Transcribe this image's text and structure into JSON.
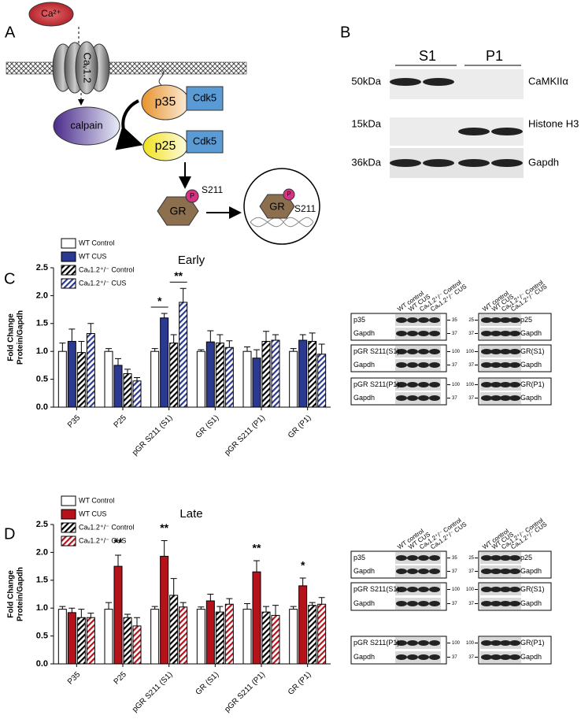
{
  "figure": {
    "panel_a": {
      "letter": "A",
      "ca": "Ca²⁺",
      "channel": "Caᵥ1.2",
      "calpain": "calpain",
      "p35": "p35",
      "cdk5_top": "Cdk5",
      "p25": "p25",
      "cdk5_bottom": "Cdk5",
      "gr_cyto": "GR",
      "p_cyto": "P",
      "s211_cyto": "S211",
      "gr_nuc": "GR",
      "p_nuc": "P",
      "s211_nuc": "S211"
    },
    "panel_b": {
      "letter": "B",
      "groups": [
        "S1",
        "P1"
      ],
      "markers": [
        "50kDa",
        "15kDa",
        "36kDa"
      ],
      "labels": [
        "CaMKIIα",
        "Histone H3",
        "Gapdh"
      ]
    },
    "blots": [
      {
        "columns": [
          "WT control",
          "WT CUS",
          "Caᵥ1.2⁺/⁻ Control",
          "Caᵥ1.2⁺/⁻ CUS"
        ],
        "left": {
          "labels": [
            "p35",
            "Gapdh",
            "pGR S211(S1)",
            "Gapdh",
            "pGR S211(P1)",
            "Gapdh"
          ],
          "markers": [
            35,
            37,
            100,
            37,
            100,
            37
          ]
        },
        "right": {
          "labels": [
            "p25",
            "Gapdh",
            "GR(S1)",
            "Gapdh",
            "GR(P1)",
            "Gapdh"
          ],
          "markers": [
            25,
            37,
            100,
            37,
            100,
            37
          ]
        }
      },
      {
        "columns": [
          "WT control",
          "WT CUS",
          "Caᵥ1.2⁺/⁻ Control",
          "Caᵥ1.2⁺/⁻ CUS"
        ],
        "left": {
          "labels": [
            "p35",
            "Gapdh",
            "pGR S211(S1)",
            "Gapdh",
            "pGR S211(P1)",
            "Gapdh"
          ],
          "markers": [
            35,
            37,
            100,
            37,
            100,
            37
          ]
        },
        "right": {
          "labels": [
            "p25",
            "Gapdh",
            "GR(S1)",
            "Gapdh",
            "GR(P1)",
            "Gapdh"
          ],
          "markers": [
            25,
            37,
            100,
            37,
            100,
            37
          ]
        }
      }
    ]
  },
  "chart_data": [
    {
      "type": "bar",
      "panel": "C",
      "title": "Early",
      "ylabel": [
        "Fold Change",
        "Protein/Gapdh"
      ],
      "categories": [
        "P35",
        "P25",
        "pGR S211 (S1)",
        "GR (S1)",
        "pGR S211 (P1)",
        "GR (P1)"
      ],
      "series": [
        {
          "name": "WT Control",
          "color": "#ffffff",
          "hatch": false,
          "values": [
            1.0,
            1.0,
            1.0,
            1.0,
            1.0,
            1.0
          ],
          "errors": [
            0.15,
            0.05,
            0.05,
            0.03,
            0.08,
            0.05
          ]
        },
        {
          "name": "WT CUS",
          "color": "#2b3990",
          "hatch": false,
          "values": [
            1.18,
            0.75,
            1.6,
            1.17,
            0.88,
            1.2
          ],
          "errors": [
            0.22,
            0.12,
            0.08,
            0.2,
            0.15,
            0.1
          ]
        },
        {
          "name": "Caᵥ1.2⁺/⁻ Control",
          "color": "#000000",
          "hatch": true,
          "values": [
            0.98,
            0.6,
            1.15,
            1.15,
            1.18,
            1.18
          ],
          "errors": [
            0.2,
            0.08,
            0.15,
            0.15,
            0.18,
            0.15
          ]
        },
        {
          "name": "Caᵥ1.2⁺/⁻ CUS",
          "color": "#2b3990",
          "hatch": true,
          "values": [
            1.32,
            0.47,
            1.88,
            1.07,
            1.2,
            0.95
          ],
          "errors": [
            0.18,
            0.06,
            0.25,
            0.12,
            0.1,
            0.18
          ]
        }
      ],
      "ylim": [
        0,
        2.5
      ],
      "yticks": [
        {
          "value": 0,
          "label": "0.0"
        },
        0.5,
        {
          "value": 1,
          "label": "1.0"
        },
        1.5,
        {
          "value": 2,
          "label": "2.0"
        },
        2.5
      ],
      "annotations": [
        {
          "text": "*",
          "category": "pGR S211 (S1)",
          "series": [
            "WT Control",
            "WT CUS"
          ]
        },
        {
          "text": "**",
          "category": "pGR S211 (S1)",
          "series": [
            "Caᵥ1.2⁺/⁻ Control",
            "Caᵥ1.2⁺/⁻ CUS"
          ]
        }
      ]
    },
    {
      "type": "bar",
      "panel": "D",
      "title": "Late",
      "ylabel": [
        "Fold Change",
        "Protein/Gapdh"
      ],
      "categories": [
        "P35",
        "P25",
        "pGR S211 (S1)",
        "GR (S1)",
        "pGR S211 (P1)",
        "GR (P1)"
      ],
      "series": [
        {
          "name": "WT Control",
          "color": "#ffffff",
          "hatch": false,
          "values": [
            0.98,
            0.98,
            0.98,
            0.98,
            0.98,
            0.98
          ],
          "errors": [
            0.05,
            0.12,
            0.05,
            0.04,
            0.1,
            0.05
          ]
        },
        {
          "name": "WT CUS",
          "color": "#b5121b",
          "hatch": false,
          "values": [
            0.92,
            1.75,
            1.93,
            1.13,
            1.65,
            1.4
          ],
          "errors": [
            0.08,
            0.2,
            0.28,
            0.12,
            0.2,
            0.14
          ]
        },
        {
          "name": "Caᵥ1.2⁺/⁻ Control",
          "color": "#000000",
          "hatch": true,
          "values": [
            0.83,
            0.83,
            1.23,
            0.93,
            0.93,
            1.05
          ],
          "errors": [
            0.15,
            0.06,
            0.3,
            0.1,
            0.1,
            0.05
          ]
        },
        {
          "name": "Caᵥ1.2⁺/⁻ CUS",
          "color": "#b5121b",
          "hatch": true,
          "values": [
            0.83,
            0.68,
            1.02,
            1.07,
            0.87,
            1.07
          ],
          "errors": [
            0.08,
            0.15,
            0.08,
            0.1,
            0.18,
            0.12
          ]
        }
      ],
      "ylim": [
        0,
        2.5
      ],
      "yticks": [
        {
          "value": 0,
          "label": "0.0"
        },
        0.5,
        {
          "value": 1,
          "label": "1.0"
        },
        1.5,
        {
          "value": 2,
          "label": "2.0"
        },
        2.5
      ],
      "annotations": [
        {
          "text": "**",
          "category": "P25",
          "series": [
            "WT CUS"
          ]
        },
        {
          "text": "**",
          "category": "pGR S211 (S1)",
          "series": [
            "WT CUS"
          ]
        },
        {
          "text": "**",
          "category": "pGR S211 (P1)",
          "series": [
            "WT CUS"
          ]
        },
        {
          "text": "*",
          "category": "GR (P1)",
          "series": [
            "WT CUS"
          ]
        }
      ]
    }
  ]
}
